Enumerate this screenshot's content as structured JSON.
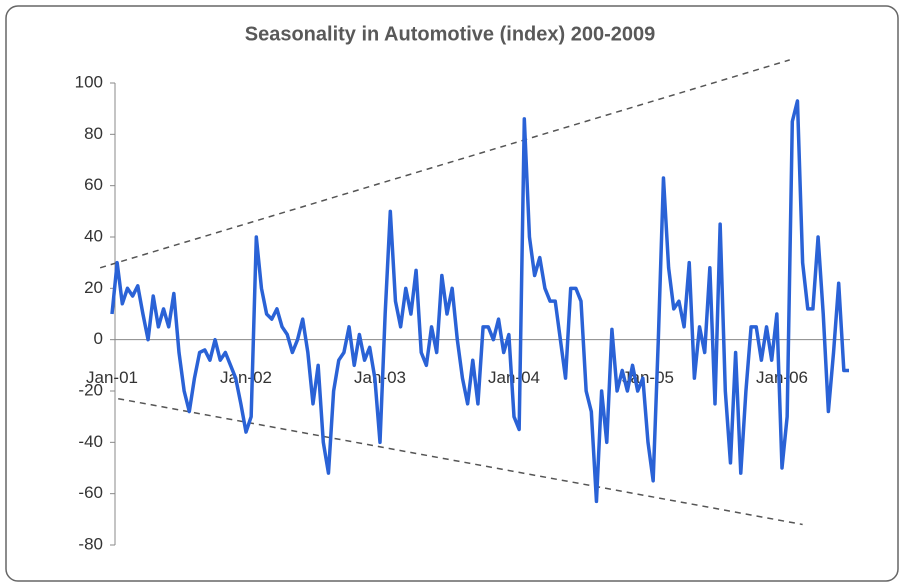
{
  "chart_data": {
    "type": "line",
    "title": "Seasonality in Automotive (index) 200-2009",
    "categories": [
      "Jan-01",
      null,
      null,
      null,
      null,
      null,
      null,
      null,
      null,
      null,
      null,
      null,
      null,
      null,
      null,
      null,
      null,
      null,
      null,
      null,
      null,
      null,
      null,
      null,
      null,
      null,
      "Jan-02",
      null,
      null,
      null,
      null,
      null,
      null,
      null,
      null,
      null,
      null,
      null,
      null,
      null,
      null,
      null,
      null,
      null,
      null,
      null,
      null,
      null,
      null,
      null,
      null,
      null,
      "Jan-03",
      null,
      null,
      null,
      null,
      null,
      null,
      null,
      null,
      null,
      null,
      null,
      null,
      null,
      null,
      null,
      null,
      null,
      null,
      null,
      null,
      null,
      null,
      null,
      null,
      null,
      "Jan-04",
      null,
      null,
      null,
      null,
      null,
      null,
      null,
      null,
      null,
      null,
      null,
      null,
      null,
      null,
      null,
      null,
      null,
      null,
      null,
      null,
      null,
      null,
      null,
      null,
      null,
      "Jan-05",
      null,
      null,
      null,
      null,
      null,
      null,
      null,
      null,
      null,
      null,
      null,
      null,
      null,
      null,
      null,
      null,
      null,
      null,
      null,
      null,
      null,
      null,
      null,
      null,
      null,
      "Jan-06",
      null,
      null,
      null,
      null,
      null,
      null,
      null,
      null,
      null,
      null,
      null,
      null,
      null
    ],
    "series": [
      {
        "color": "#2a62d6",
        "values": [
          10,
          30,
          14,
          20,
          17,
          21,
          10,
          0,
          17,
          5,
          12,
          5,
          18,
          -5,
          -20,
          -28,
          -15,
          -5,
          -4,
          -8,
          0,
          -8,
          -5,
          -10,
          -15,
          -25,
          -36,
          -30,
          40,
          20,
          10,
          8,
          12,
          5,
          2,
          -5,
          0,
          8,
          -5,
          -25,
          -10,
          -40,
          -52,
          -20,
          -8,
          -5,
          5,
          -10,
          2,
          -8,
          -3,
          -15,
          -40,
          10,
          50,
          15,
          5,
          20,
          10,
          27,
          -5,
          -10,
          5,
          -5,
          25,
          10,
          20,
          0,
          -15,
          -25,
          -8,
          -25,
          5,
          5,
          0,
          8,
          -5,
          2,
          -30,
          -35,
          86,
          40,
          25,
          32,
          20,
          15,
          15,
          0,
          -15,
          20,
          20,
          15,
          -20,
          -28,
          -63,
          -20,
          -40,
          4,
          -20,
          -12,
          -20,
          -10,
          -20,
          -15,
          -40,
          -55,
          0,
          63,
          28,
          12,
          15,
          5,
          30,
          -15,
          5,
          -5,
          28,
          -25,
          45,
          -20,
          -48,
          -5,
          -52,
          -20,
          5,
          5,
          -8,
          5,
          -8,
          10,
          -50,
          -30,
          85,
          93,
          30,
          12,
          12,
          40,
          10,
          -28,
          -5,
          22,
          -12,
          -12
        ]
      }
    ],
    "trend_lines": [
      {
        "color": "#555555",
        "x": [
          -2.3,
          131.5
        ],
        "values": [
          28,
          109
        ]
      },
      {
        "color": "#555555",
        "x": [
          1.2,
          134
        ],
        "values": [
          -23,
          -72
        ]
      }
    ],
    "ylim": [
      -80,
      100
    ],
    "yticks": [
      -80,
      -60,
      -40,
      -20,
      0,
      20,
      40,
      60,
      80,
      100
    ]
  }
}
